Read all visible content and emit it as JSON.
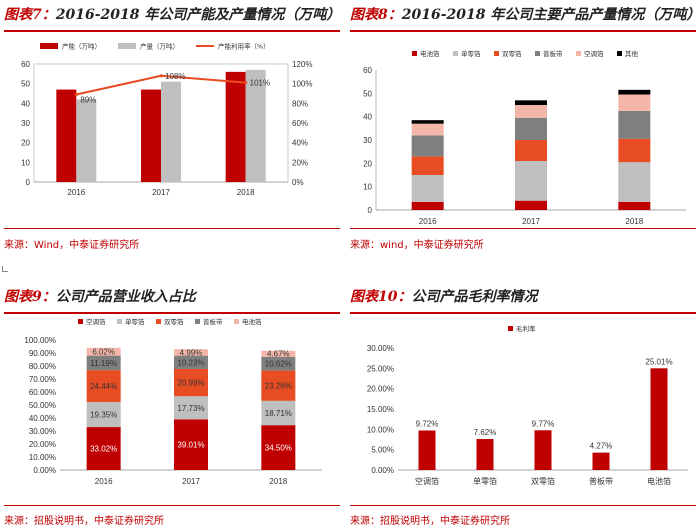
{
  "colors": {
    "accent": "#c00000",
    "grey": "#bfbfbf",
    "orange": "#e84c22",
    "darkgrey": "#7f7f7f",
    "pink": "#f4b6a8",
    "black": "#000000"
  },
  "panels": [
    {
      "title_prefix": "图表7：",
      "title_text": "2016-2018 年公司产能及产量情况（万吨）",
      "source": "来源：Wind，中泰证券研究所"
    },
    {
      "title_prefix": "图表8：",
      "title_text": "2016-2018 年公司主要产品产量情况（万吨）",
      "source": "来源：wind，中泰证券研究所"
    },
    {
      "title_prefix": "图表9：",
      "title_text": "公司产品营业收入占比",
      "source": "来源：招股说明书，中泰证券研究所"
    },
    {
      "title_prefix": "图表10：",
      "title_text": "公司产品毛利率情况",
      "source": "来源：招股说明书，中泰证券研究所"
    }
  ],
  "chart_data": [
    {
      "type": "bar",
      "categories": [
        "2016",
        "2017",
        "2018"
      ],
      "series": [
        {
          "name": "产能（万吨）",
          "kind": "bar",
          "color": "#c00000",
          "values": [
            47,
            47,
            56
          ]
        },
        {
          "name": "产量（万吨）",
          "kind": "bar",
          "color": "#bfbfbf",
          "values": [
            42,
            51,
            57
          ]
        },
        {
          "name": "产能利用率（%）",
          "kind": "line",
          "axis": "right",
          "color": "#e84c22",
          "values": [
            89,
            108,
            101
          ],
          "labels": [
            "89%",
            "108%",
            "101%"
          ]
        }
      ],
      "ylim": [
        0,
        60
      ],
      "yticks": [
        "0",
        "10",
        "20",
        "30",
        "40",
        "50",
        "60"
      ],
      "y2lim": [
        0,
        120
      ],
      "y2ticks": [
        "0%",
        "20%",
        "40%",
        "60%",
        "80%",
        "100%",
        "120%"
      ],
      "legend": "top"
    },
    {
      "type": "bar",
      "stacked": true,
      "categories": [
        "2016",
        "2017",
        "2018"
      ],
      "series": [
        {
          "name": "电池箔",
          "color": "#c00000",
          "values": [
            3.5,
            4,
            3.5
          ]
        },
        {
          "name": "单零箔",
          "color": "#bfbfbf",
          "values": [
            11.5,
            17,
            17
          ]
        },
        {
          "name": "双零箔",
          "color": "#e84c22",
          "values": [
            8,
            9,
            10
          ]
        },
        {
          "name": "普板带",
          "color": "#7f7f7f",
          "values": [
            9,
            9.5,
            12
          ]
        },
        {
          "name": "空调箔",
          "color": "#f4b6a8",
          "values": [
            5,
            5.5,
            7
          ]
        },
        {
          "name": "其他",
          "color": "#000000",
          "values": [
            1.5,
            2,
            2
          ]
        }
      ],
      "ylim": [
        0,
        60
      ],
      "yticks": [
        "0",
        "10",
        "20",
        "30",
        "40",
        "50",
        "60"
      ],
      "legend": "top"
    },
    {
      "type": "bar",
      "stacked": true,
      "categories": [
        "2016",
        "2017",
        "2018"
      ],
      "series": [
        {
          "name": "空调箔",
          "color": "#c00000",
          "values": [
            33.02,
            39.01,
            34.5
          ],
          "labels": [
            "33.02%",
            "39.01%",
            "34.50%"
          ]
        },
        {
          "name": "单零箔",
          "color": "#bfbfbf",
          "values": [
            19.35,
            17.73,
            18.71
          ],
          "labels": [
            "19.35%",
            "17.73%",
            "18.71%"
          ]
        },
        {
          "name": "双零箔",
          "color": "#e84c22",
          "values": [
            24.44,
            20.99,
            23.26
          ],
          "labels": [
            "24.44%",
            "20.99%",
            "23.26%"
          ]
        },
        {
          "name": "普板带",
          "color": "#7f7f7f",
          "values": [
            11.19,
            10.23,
            10.62
          ],
          "labels": [
            "11.19%",
            "10.23%",
            "10.62%"
          ]
        },
        {
          "name": "电池箔",
          "color": "#f4b6a8",
          "values": [
            6.02,
            4.99,
            4.67
          ],
          "labels": [
            "6.02%",
            "4.99%",
            "4.67%"
          ]
        }
      ],
      "ylim": [
        0,
        100
      ],
      "yticks": [
        "0.00%",
        "10.00%",
        "20.00%",
        "30.00%",
        "40.00%",
        "50.00%",
        "60.00%",
        "70.00%",
        "80.00%",
        "90.00%",
        "100.00%"
      ],
      "legend": "top"
    },
    {
      "type": "bar",
      "categories": [
        "空调箔",
        "单零箔",
        "双零箔",
        "普板带",
        "电池箔"
      ],
      "series": [
        {
          "name": "毛利率",
          "color": "#c00000",
          "values": [
            9.72,
            7.62,
            9.77,
            4.27,
            25.01
          ],
          "labels": [
            "9.72%",
            "7.62%",
            "9.77%",
            "4.27%",
            "25.01%"
          ]
        }
      ],
      "ylim": [
        0,
        30
      ],
      "yticks": [
        "0.00%",
        "5.00%",
        "10.00%",
        "15.00%",
        "20.00%",
        "25.00%",
        "30.00%"
      ],
      "legend": "top-left"
    }
  ]
}
